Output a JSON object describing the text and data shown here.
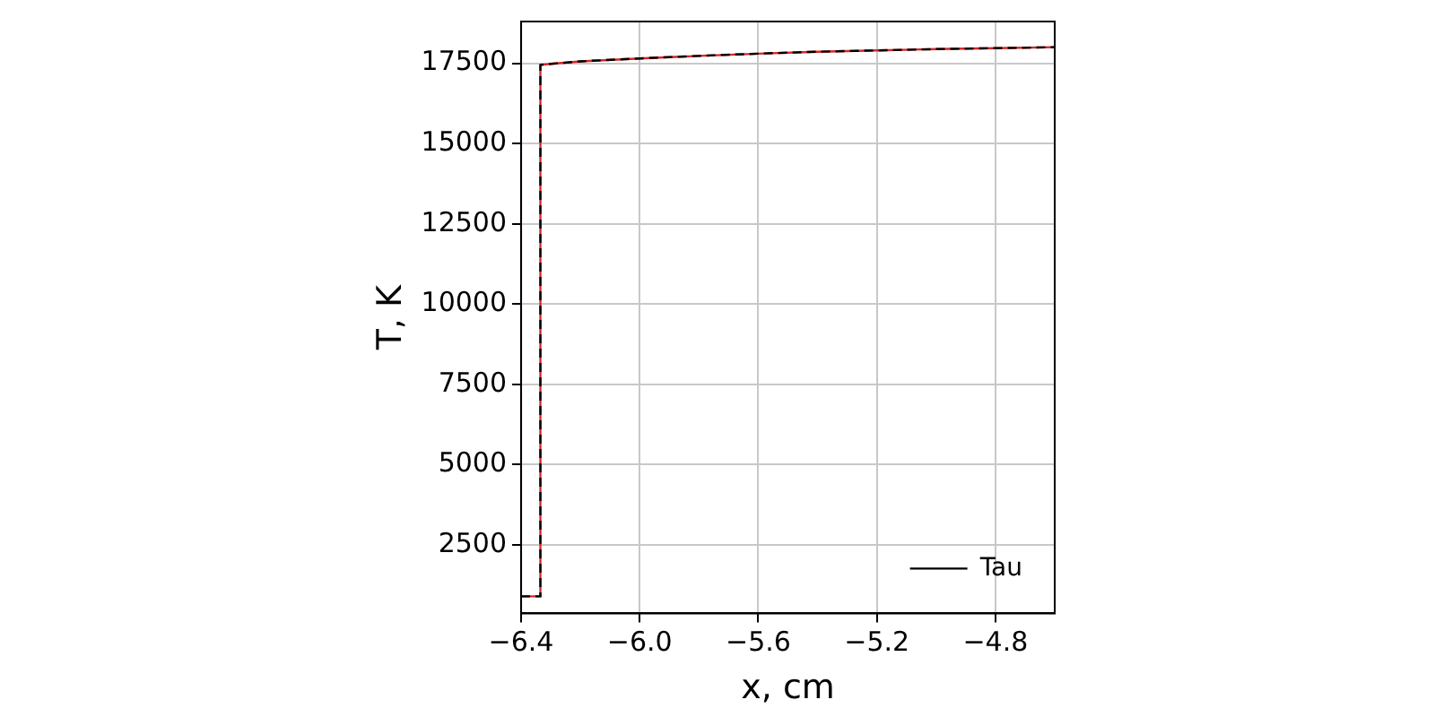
{
  "chart_data": {
    "type": "line",
    "xlabel": "x, cm",
    "ylabel": "T, K",
    "series": [
      {
        "color": "#d62728",
        "line_style": "solid",
        "x": [
          -6.4,
          -6.335,
          -6.335,
          -6.3,
          -6.2,
          -6.0,
          -5.8,
          -5.6,
          -5.4,
          -5.2,
          -5.0,
          -4.8,
          -4.6
        ],
        "values": [
          900,
          900,
          17450,
          17480,
          17560,
          17650,
          17730,
          17800,
          17860,
          17900,
          17940,
          17970,
          18000
        ]
      },
      {
        "name": "Tau",
        "color": "#000000",
        "line_style": "dashed",
        "x": [
          -6.4,
          -6.335,
          -6.335,
          -6.3,
          -6.2,
          -6.0,
          -5.8,
          -5.6,
          -5.4,
          -5.2,
          -5.0,
          -4.8,
          -4.6
        ],
        "values": [
          900,
          900,
          17450,
          17480,
          17560,
          17650,
          17730,
          17800,
          17860,
          17900,
          17940,
          17970,
          18000
        ]
      }
    ],
    "xlim": [
      -6.4,
      -4.6
    ],
    "xticks": [
      {
        "value": -6.4,
        "label": "−6.4"
      },
      {
        "value": -6.0,
        "label": "−6.0"
      },
      {
        "value": -5.6,
        "label": "−5.6"
      },
      {
        "value": -5.2,
        "label": "−5.2"
      },
      {
        "value": -4.8,
        "label": "−4.8"
      }
    ],
    "ylim": [
      370,
      18800
    ],
    "yticks": [
      2500,
      5000,
      7500,
      10000,
      12500,
      15000,
      17500
    ],
    "grid": true,
    "legend": "bottom right",
    "marker": "none"
  }
}
